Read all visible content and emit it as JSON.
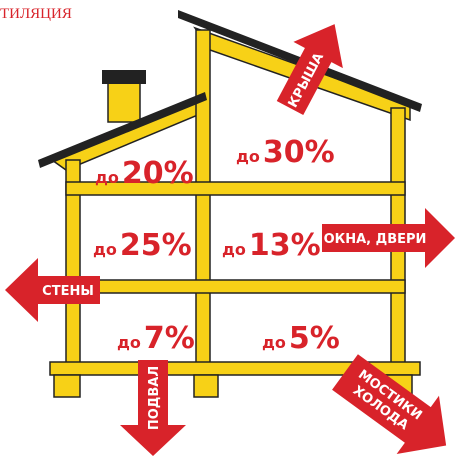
{
  "corner_text": "ТИЛЯЦИЯ",
  "rooms": [
    {
      "prefix": "до",
      "value": "20%"
    },
    {
      "prefix": "до",
      "value": "30%"
    },
    {
      "prefix": "до",
      "value": "25%"
    },
    {
      "prefix": "до",
      "value": "13%"
    },
    {
      "prefix": "до",
      "value": "7%"
    },
    {
      "prefix": "до",
      "value": "5%"
    }
  ],
  "arrows": {
    "roof": "КРЫША",
    "windows": "ОКНА, ДВЕРИ",
    "walls": "СТЕНЫ",
    "basement": "ПОДВАЛ",
    "bridges": [
      "МОСТИКИ",
      "ХОЛОДА"
    ]
  }
}
